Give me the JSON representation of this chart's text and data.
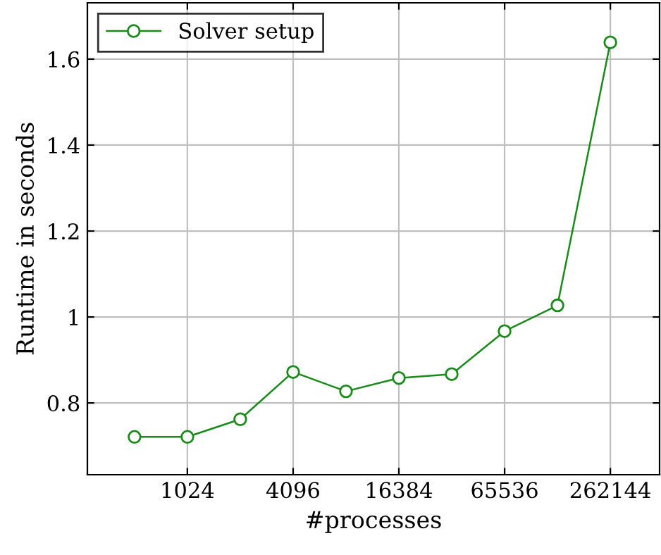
{
  "chart_data": {
    "type": "line",
    "xlabel": "#processes",
    "ylabel": "Runtime in seconds",
    "x": [
      512,
      1024,
      2048,
      4096,
      8192,
      16384,
      32768,
      65536,
      131072,
      262144
    ],
    "series": [
      {
        "name": "Solver setup",
        "color": "#1a8a1a",
        "values": [
          0.721,
          0.721,
          0.762,
          0.872,
          0.827,
          0.858,
          0.867,
          0.967,
          1.027,
          1.639
        ]
      }
    ],
    "log": "x",
    "xlim": [
      276,
      500000
    ],
    "xticks": [
      1024,
      4096,
      16384,
      65536,
      262144
    ],
    "ylim": [
      0.633,
      1.731
    ],
    "yticks": [
      0.8,
      1,
      1.2,
      1.4,
      1.6
    ],
    "grid": true,
    "legend": "top left",
    "marker": "circle",
    "line_style": "solid"
  }
}
